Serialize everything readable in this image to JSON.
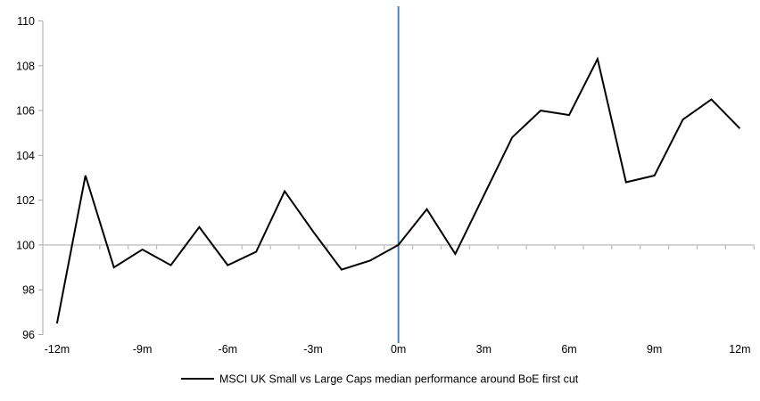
{
  "chart_data": {
    "type": "line",
    "title": "",
    "x": [
      -12,
      -11,
      -10,
      -9,
      -8,
      -7,
      -6,
      -5,
      -4,
      -3,
      -2,
      -1,
      0,
      1,
      2,
      3,
      4,
      5,
      6,
      7,
      8,
      9,
      10,
      11,
      12
    ],
    "series": [
      {
        "name": "MSCI UK Small vs Large Caps median performance around BoE first cut",
        "color": "#000000",
        "values": [
          96.5,
          103.1,
          99.0,
          99.8,
          99.1,
          100.8,
          99.1,
          99.7,
          102.4,
          100.6,
          98.9,
          99.3,
          100.0,
          101.6,
          99.6,
          102.2,
          104.8,
          106.0,
          105.8,
          108.3,
          102.8,
          103.1,
          105.6,
          106.5,
          105.2
        ]
      }
    ],
    "xlabel": "",
    "ylabel": "",
    "xlim": [
      -12.5,
      12.5
    ],
    "ylim": [
      96,
      110
    ],
    "y_ticks": [
      96,
      98,
      100,
      102,
      104,
      106,
      108,
      110
    ],
    "x_tick_labels": [
      {
        "pos": -12,
        "label": "-12m"
      },
      {
        "pos": -9,
        "label": "-9m"
      },
      {
        "pos": -6,
        "label": "-6m"
      },
      {
        "pos": -3,
        "label": "-3m"
      },
      {
        "pos": 0,
        "label": "0m"
      },
      {
        "pos": 3,
        "label": "3m"
      },
      {
        "pos": 6,
        "label": "6m"
      },
      {
        "pos": 9,
        "label": "9m"
      },
      {
        "pos": 12,
        "label": "12m"
      }
    ],
    "minor_tick_step": 1,
    "baseline_value": 100,
    "reference_line": {
      "x": 0,
      "color": "#4F81BD"
    },
    "colors": {
      "axis": "#A6A6A6",
      "baseline": "#BFBFBF",
      "series": "#000000",
      "reference": "#4F81BD"
    },
    "grid": false,
    "legend_position": "bottom"
  }
}
